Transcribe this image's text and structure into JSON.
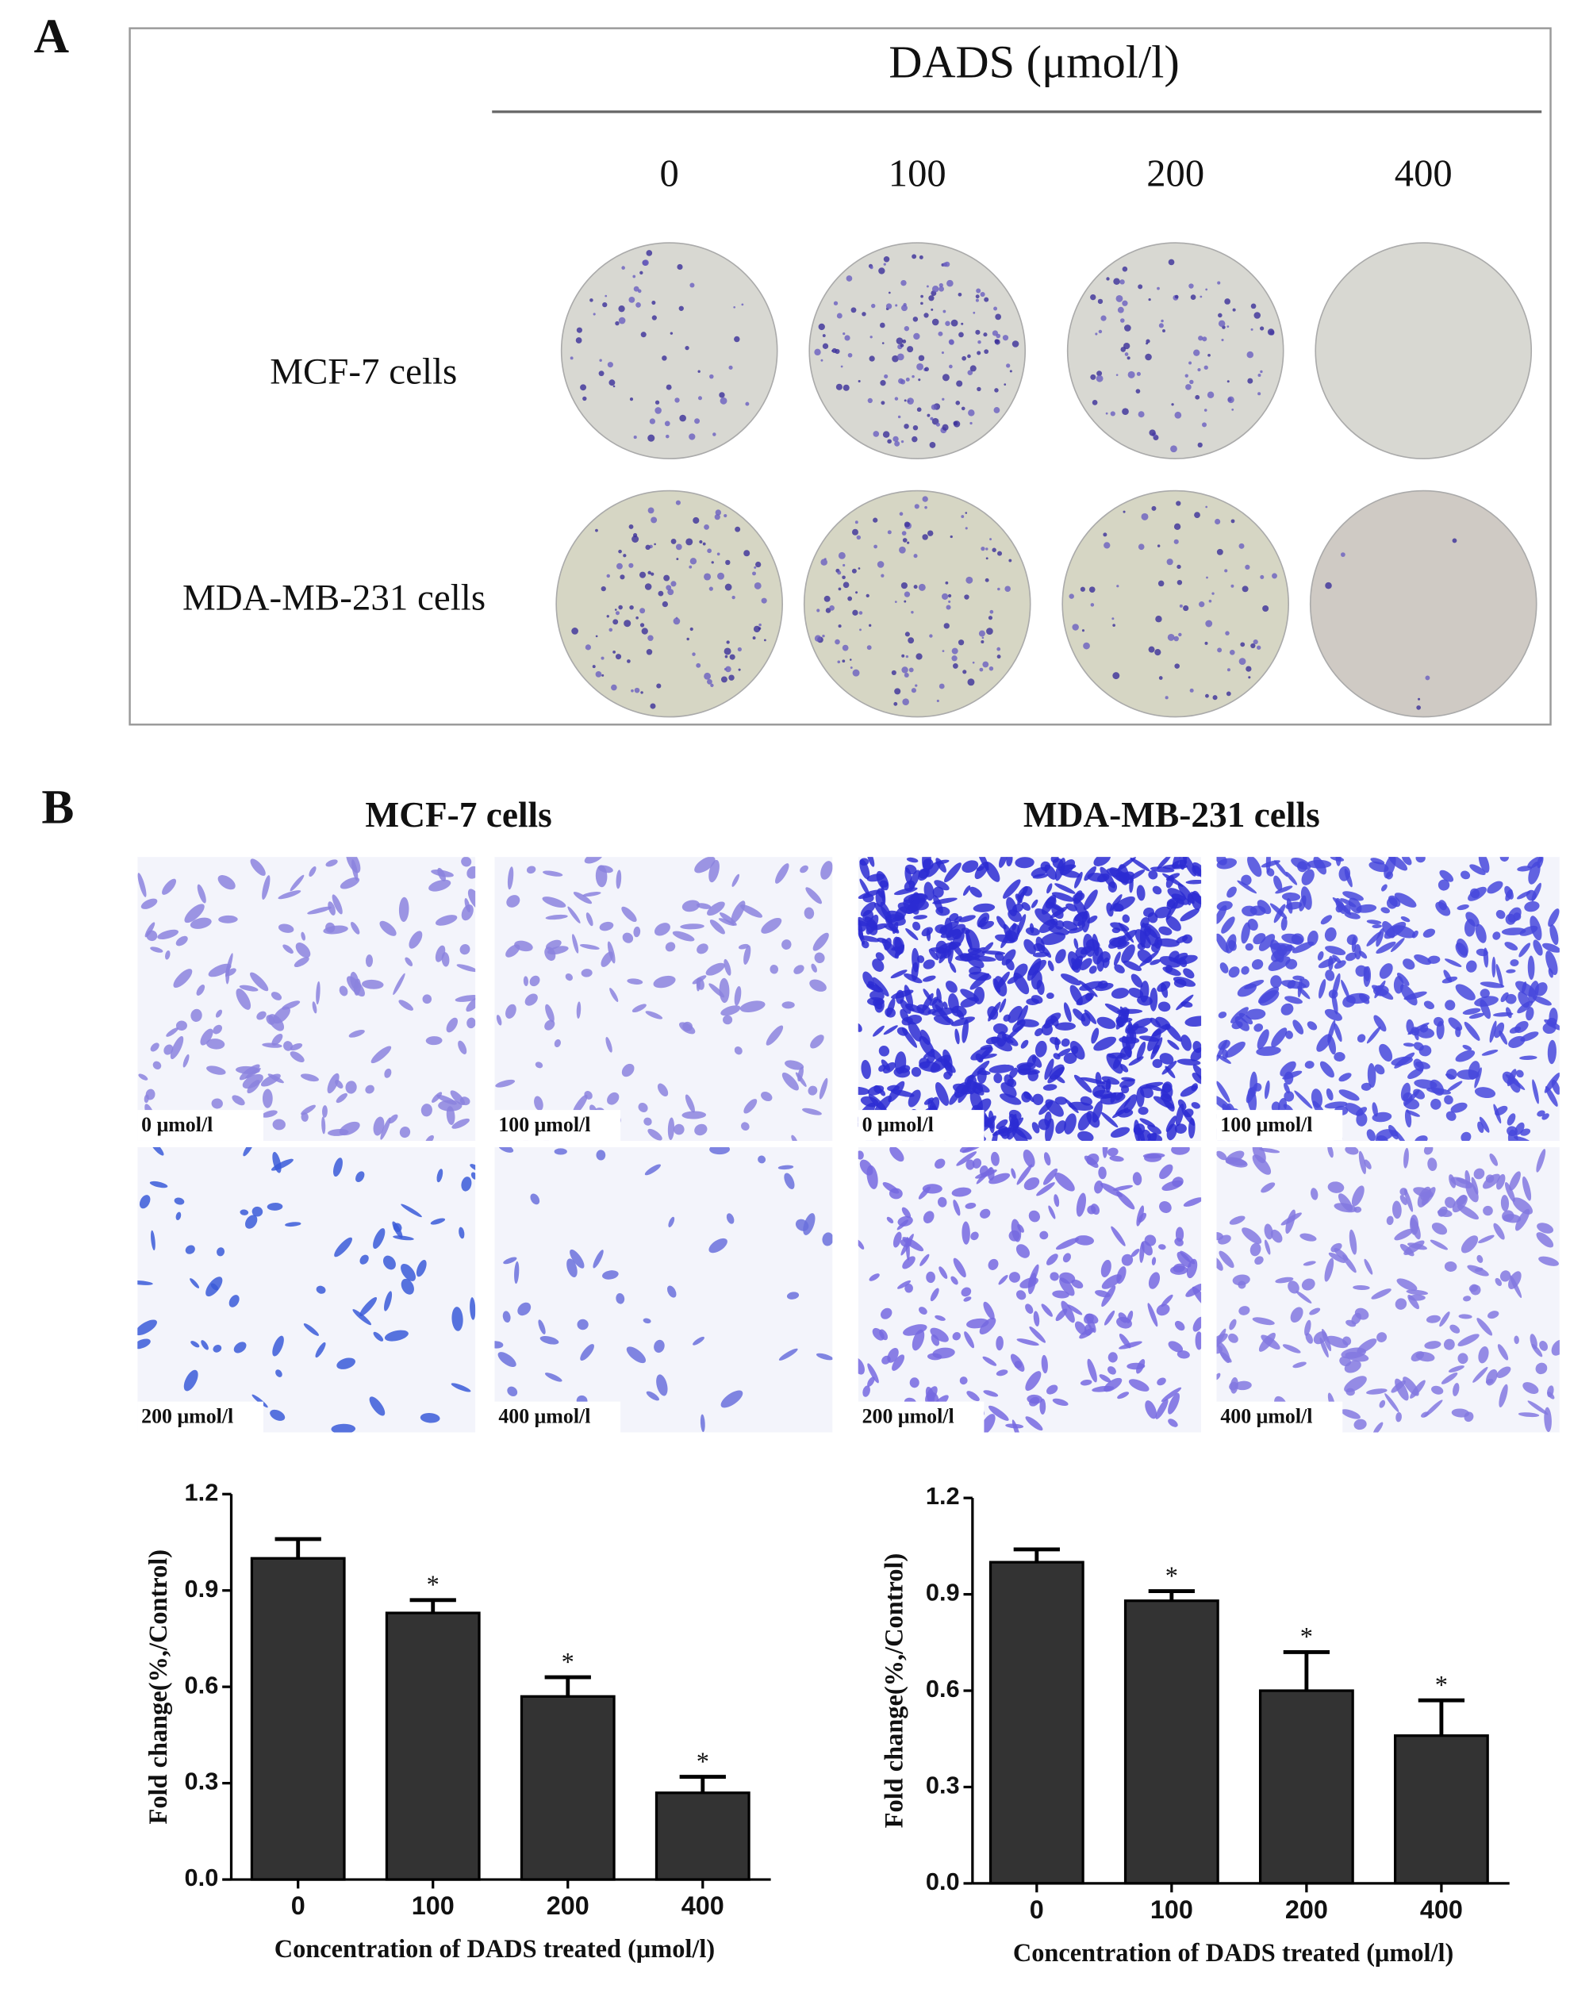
{
  "panel_a": {
    "label": "A",
    "header": "DADS (μmol/l)",
    "concentrations": [
      "0",
      "100",
      "200",
      "400"
    ],
    "rows": [
      "MCF-7 cells",
      "MDA-MB-231 cells"
    ]
  },
  "panel_b": {
    "label": "B",
    "groups": [
      {
        "title": "MCF-7 cells",
        "images": [
          "0 μmol/l",
          "100 μmol/l",
          "200 μmol/l",
          "400 μmol/l"
        ]
      },
      {
        "title": "MDA-MB-231 cells",
        "images": [
          "0 μmol/l",
          "100 μmol/l",
          "200 μmol/l",
          "400 μmol/l"
        ]
      }
    ]
  },
  "chart_data": [
    {
      "type": "bar",
      "categories": [
        "0",
        "100",
        "200",
        "400"
      ],
      "values": [
        1.0,
        0.83,
        0.57,
        0.27
      ],
      "errors": [
        0.06,
        0.04,
        0.06,
        0.05
      ],
      "value_annotations": [
        null,
        "*",
        "*",
        "*"
      ],
      "color": "#333333",
      "xlabel": "Concentration of DADS treated (μmol/l)",
      "ylabel": "Fold change(%,/Control)",
      "ylim": [
        0,
        1.2
      ],
      "yticks": [
        {
          "value": 0,
          "label": "0.0"
        },
        0.3,
        0.6,
        0.9,
        1.2
      ]
    },
    {
      "type": "bar",
      "categories": [
        "0",
        "100",
        "200",
        "400"
      ],
      "values": [
        1.0,
        0.88,
        0.6,
        0.46
      ],
      "errors": [
        0.04,
        0.03,
        0.12,
        0.11
      ],
      "value_annotations": [
        null,
        "*",
        "*",
        "*"
      ],
      "color": "#333333",
      "xlabel": "Concentration of DADS treated (μmol/l)",
      "ylabel": "Fold change(%,/Control)",
      "ylim": [
        0,
        1.2
      ],
      "yticks": [
        {
          "value": 0,
          "label": "0.0"
        },
        0.3,
        0.6,
        0.9,
        1.2
      ]
    }
  ]
}
